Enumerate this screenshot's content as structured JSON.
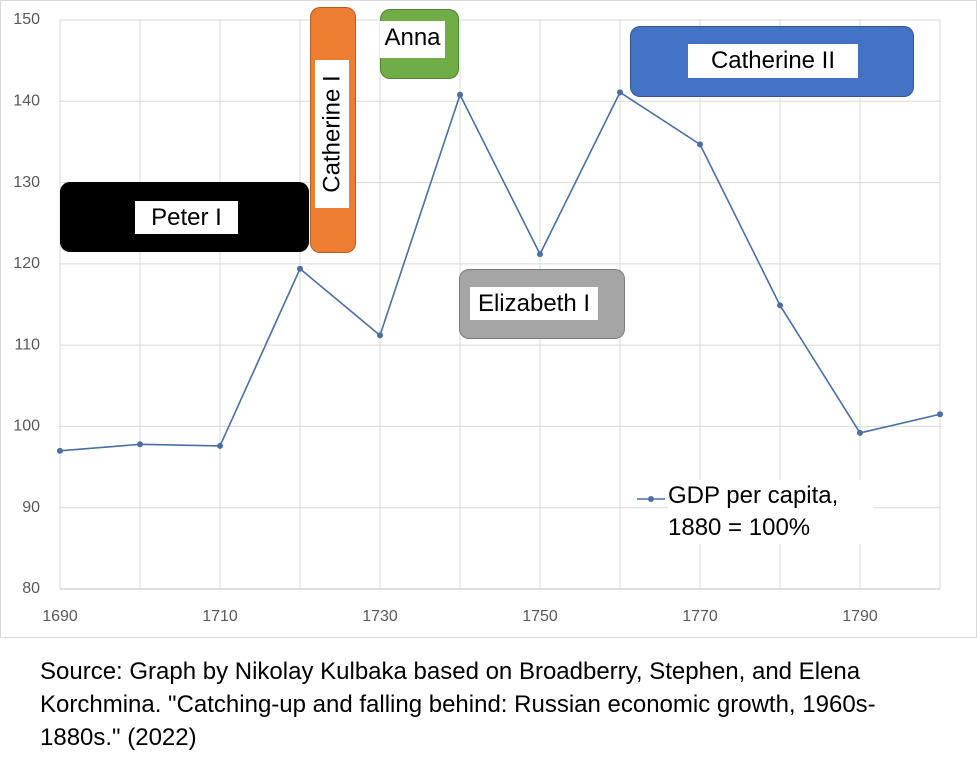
{
  "chart_data": {
    "type": "line",
    "x": [
      1690,
      1700,
      1710,
      1720,
      1730,
      1740,
      1750,
      1760,
      1770,
      1780,
      1790,
      1800
    ],
    "series": [
      {
        "name": "GDP per capita, 1880 = 100%",
        "color": "#4a6fa5",
        "values": [
          97.0,
          97.8,
          97.6,
          119.4,
          111.2,
          140.8,
          121.2,
          141.1,
          134.7,
          114.9,
          99.2,
          101.5
        ]
      }
    ],
    "xlim": [
      1690,
      1800
    ],
    "xticks": [
      1690,
      1710,
      1730,
      1750,
      1770,
      1790
    ],
    "ylim": [
      80,
      150
    ],
    "yticks": [
      80,
      90,
      100,
      110,
      120,
      130,
      140,
      150
    ],
    "grid": true,
    "annotations": [
      {
        "text": "Peter I",
        "color": "#000000"
      },
      {
        "text": "Catherine I",
        "color": "#ed7d31"
      },
      {
        "text": "Anna",
        "color": "#70ad47"
      },
      {
        "text": "Elizabeth I",
        "color": "#a5a5a5"
      },
      {
        "text": "Catherine II",
        "color": "#4472c4"
      }
    ],
    "source": "Source: Graph by Nikolay Kulbaka based on Broadberry, Stephen, and Elena Korchmina. \"Catching-up and falling behind: Russian economic growth, 1960s-1880s.\" (2022)"
  }
}
